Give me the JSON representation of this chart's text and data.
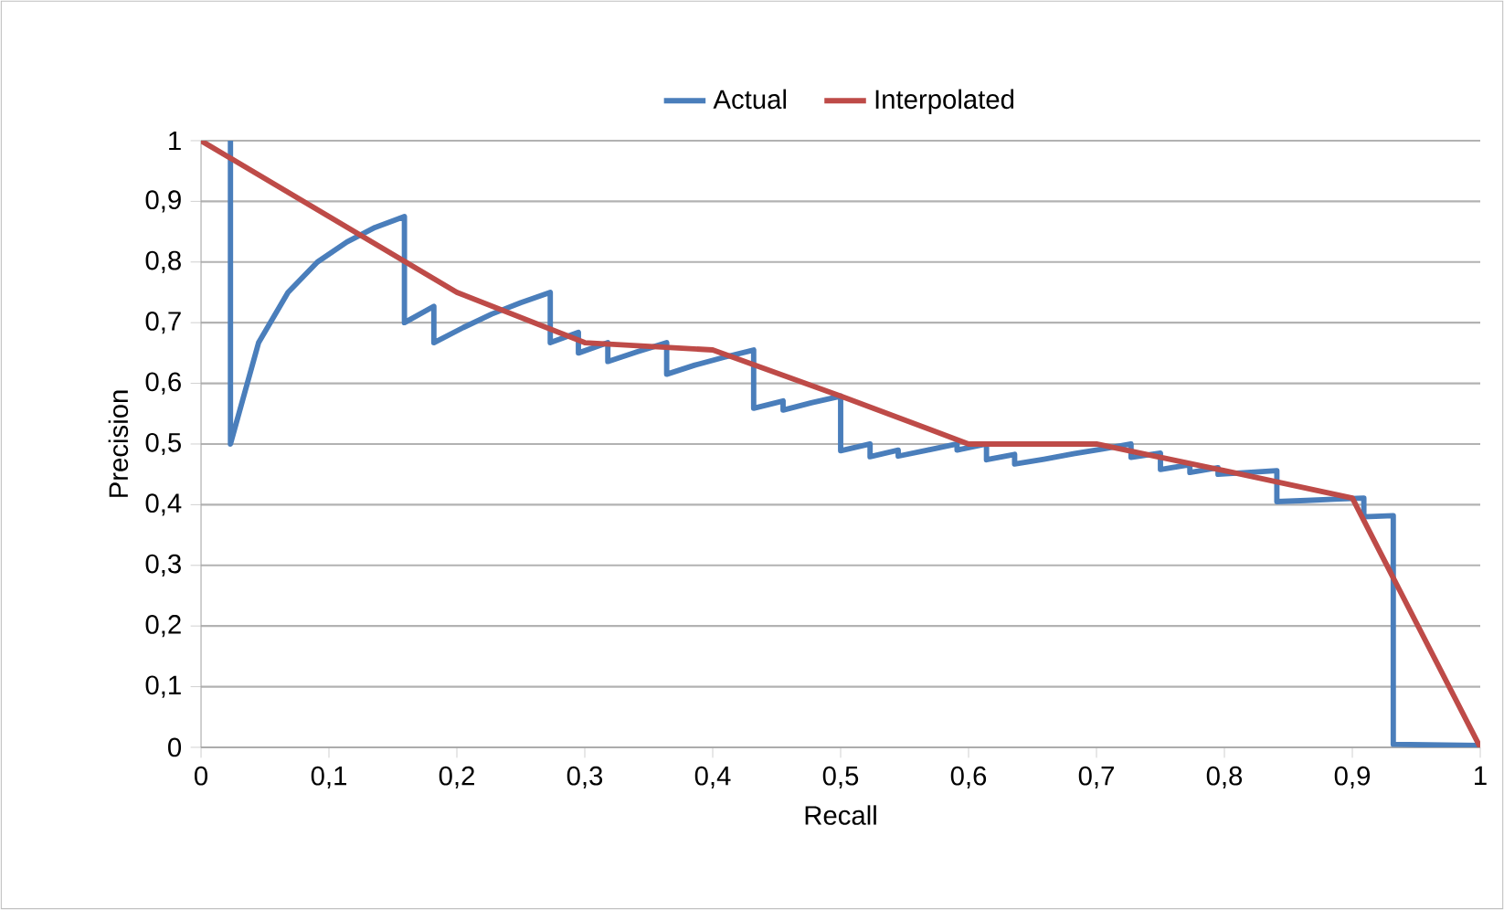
{
  "chart_data": {
    "type": "line",
    "xlabel": "Recall",
    "ylabel": "Precision",
    "xlim": [
      0,
      1
    ],
    "ylim": [
      0,
      1
    ],
    "xticks": [
      0,
      {
        "value": 0.1,
        "label": "0,1"
      },
      {
        "value": 0.2,
        "label": "0,2"
      },
      {
        "value": 0.3,
        "label": "0,3"
      },
      {
        "value": 0.4,
        "label": "0,4"
      },
      {
        "value": 0.5,
        "label": "0,5"
      },
      {
        "value": 0.6,
        "label": "0,6"
      },
      {
        "value": 0.7,
        "label": "0,7"
      },
      {
        "value": 0.8,
        "label": "0,8"
      },
      {
        "value": 0.9,
        "label": "0,9"
      },
      1
    ],
    "yticks": [
      0,
      {
        "value": 0.1,
        "label": "0,1"
      },
      {
        "value": 0.2,
        "label": "0,2"
      },
      {
        "value": 0.3,
        "label": "0,3"
      },
      {
        "value": 0.4,
        "label": "0,4"
      },
      {
        "value": 0.5,
        "label": "0,5"
      },
      {
        "value": 0.6,
        "label": "0,6"
      },
      {
        "value": 0.7,
        "label": "0,7"
      },
      {
        "value": 0.8,
        "label": "0,8"
      },
      {
        "value": 0.9,
        "label": "0,9"
      },
      1
    ],
    "grid": "y",
    "legend": "top",
    "marker": "none",
    "line_style": "solid",
    "series": [
      {
        "name": "Actual",
        "color": "#4a7ebb",
        "x": [
          0.023,
          0.023,
          0.045,
          0.068,
          0.091,
          0.114,
          0.136,
          0.159,
          0.159,
          0.182,
          0.182,
          0.205,
          0.227,
          0.25,
          0.273,
          0.273,
          0.295,
          0.295,
          0.318,
          0.318,
          0.341,
          0.364,
          0.364,
          0.386,
          0.409,
          0.432,
          0.432,
          0.455,
          0.455,
          0.477,
          0.5,
          0.5,
          0.523,
          0.523,
          0.545,
          0.545,
          0.568,
          0.591,
          0.591,
          0.614,
          0.614,
          0.636,
          0.636,
          0.659,
          0.682,
          0.705,
          0.727,
          0.727,
          0.75,
          0.75,
          0.773,
          0.773,
          0.795,
          0.795,
          0.818,
          0.841,
          0.841,
          0.864,
          0.886,
          0.909,
          0.909,
          0.932,
          0.932,
          1
        ],
        "values": [
          1,
          0.5,
          0.667,
          0.75,
          0.8,
          0.833,
          0.857,
          0.875,
          0.7,
          0.727,
          0.667,
          0.692,
          0.714,
          0.733,
          0.75,
          0.667,
          0.684,
          0.65,
          0.667,
          0.636,
          0.652,
          0.667,
          0.615,
          0.63,
          0.643,
          0.655,
          0.559,
          0.571,
          0.556,
          0.568,
          0.579,
          0.489,
          0.5,
          0.479,
          0.49,
          0.48,
          0.49,
          0.5,
          0.49,
          0.5,
          0.474,
          0.483,
          0.467,
          0.475,
          0.484,
          0.492,
          0.5,
          0.478,
          0.485,
          0.458,
          0.466,
          0.453,
          0.461,
          0.45,
          0.453,
          0.456,
          0.405,
          0.407,
          0.409,
          0.411,
          0.38,
          0.382,
          0.005,
          0.003
        ]
      },
      {
        "name": "Interpolated",
        "color": "#be4b48",
        "x": [
          0,
          0.1,
          0.2,
          0.3,
          0.4,
          0.5,
          0.6,
          0.7,
          0.8,
          0.9,
          1
        ],
        "values": [
          1,
          0.875,
          0.75,
          0.667,
          0.655,
          0.579,
          0.5,
          0.5,
          0.456,
          0.411,
          0
        ]
      }
    ]
  }
}
